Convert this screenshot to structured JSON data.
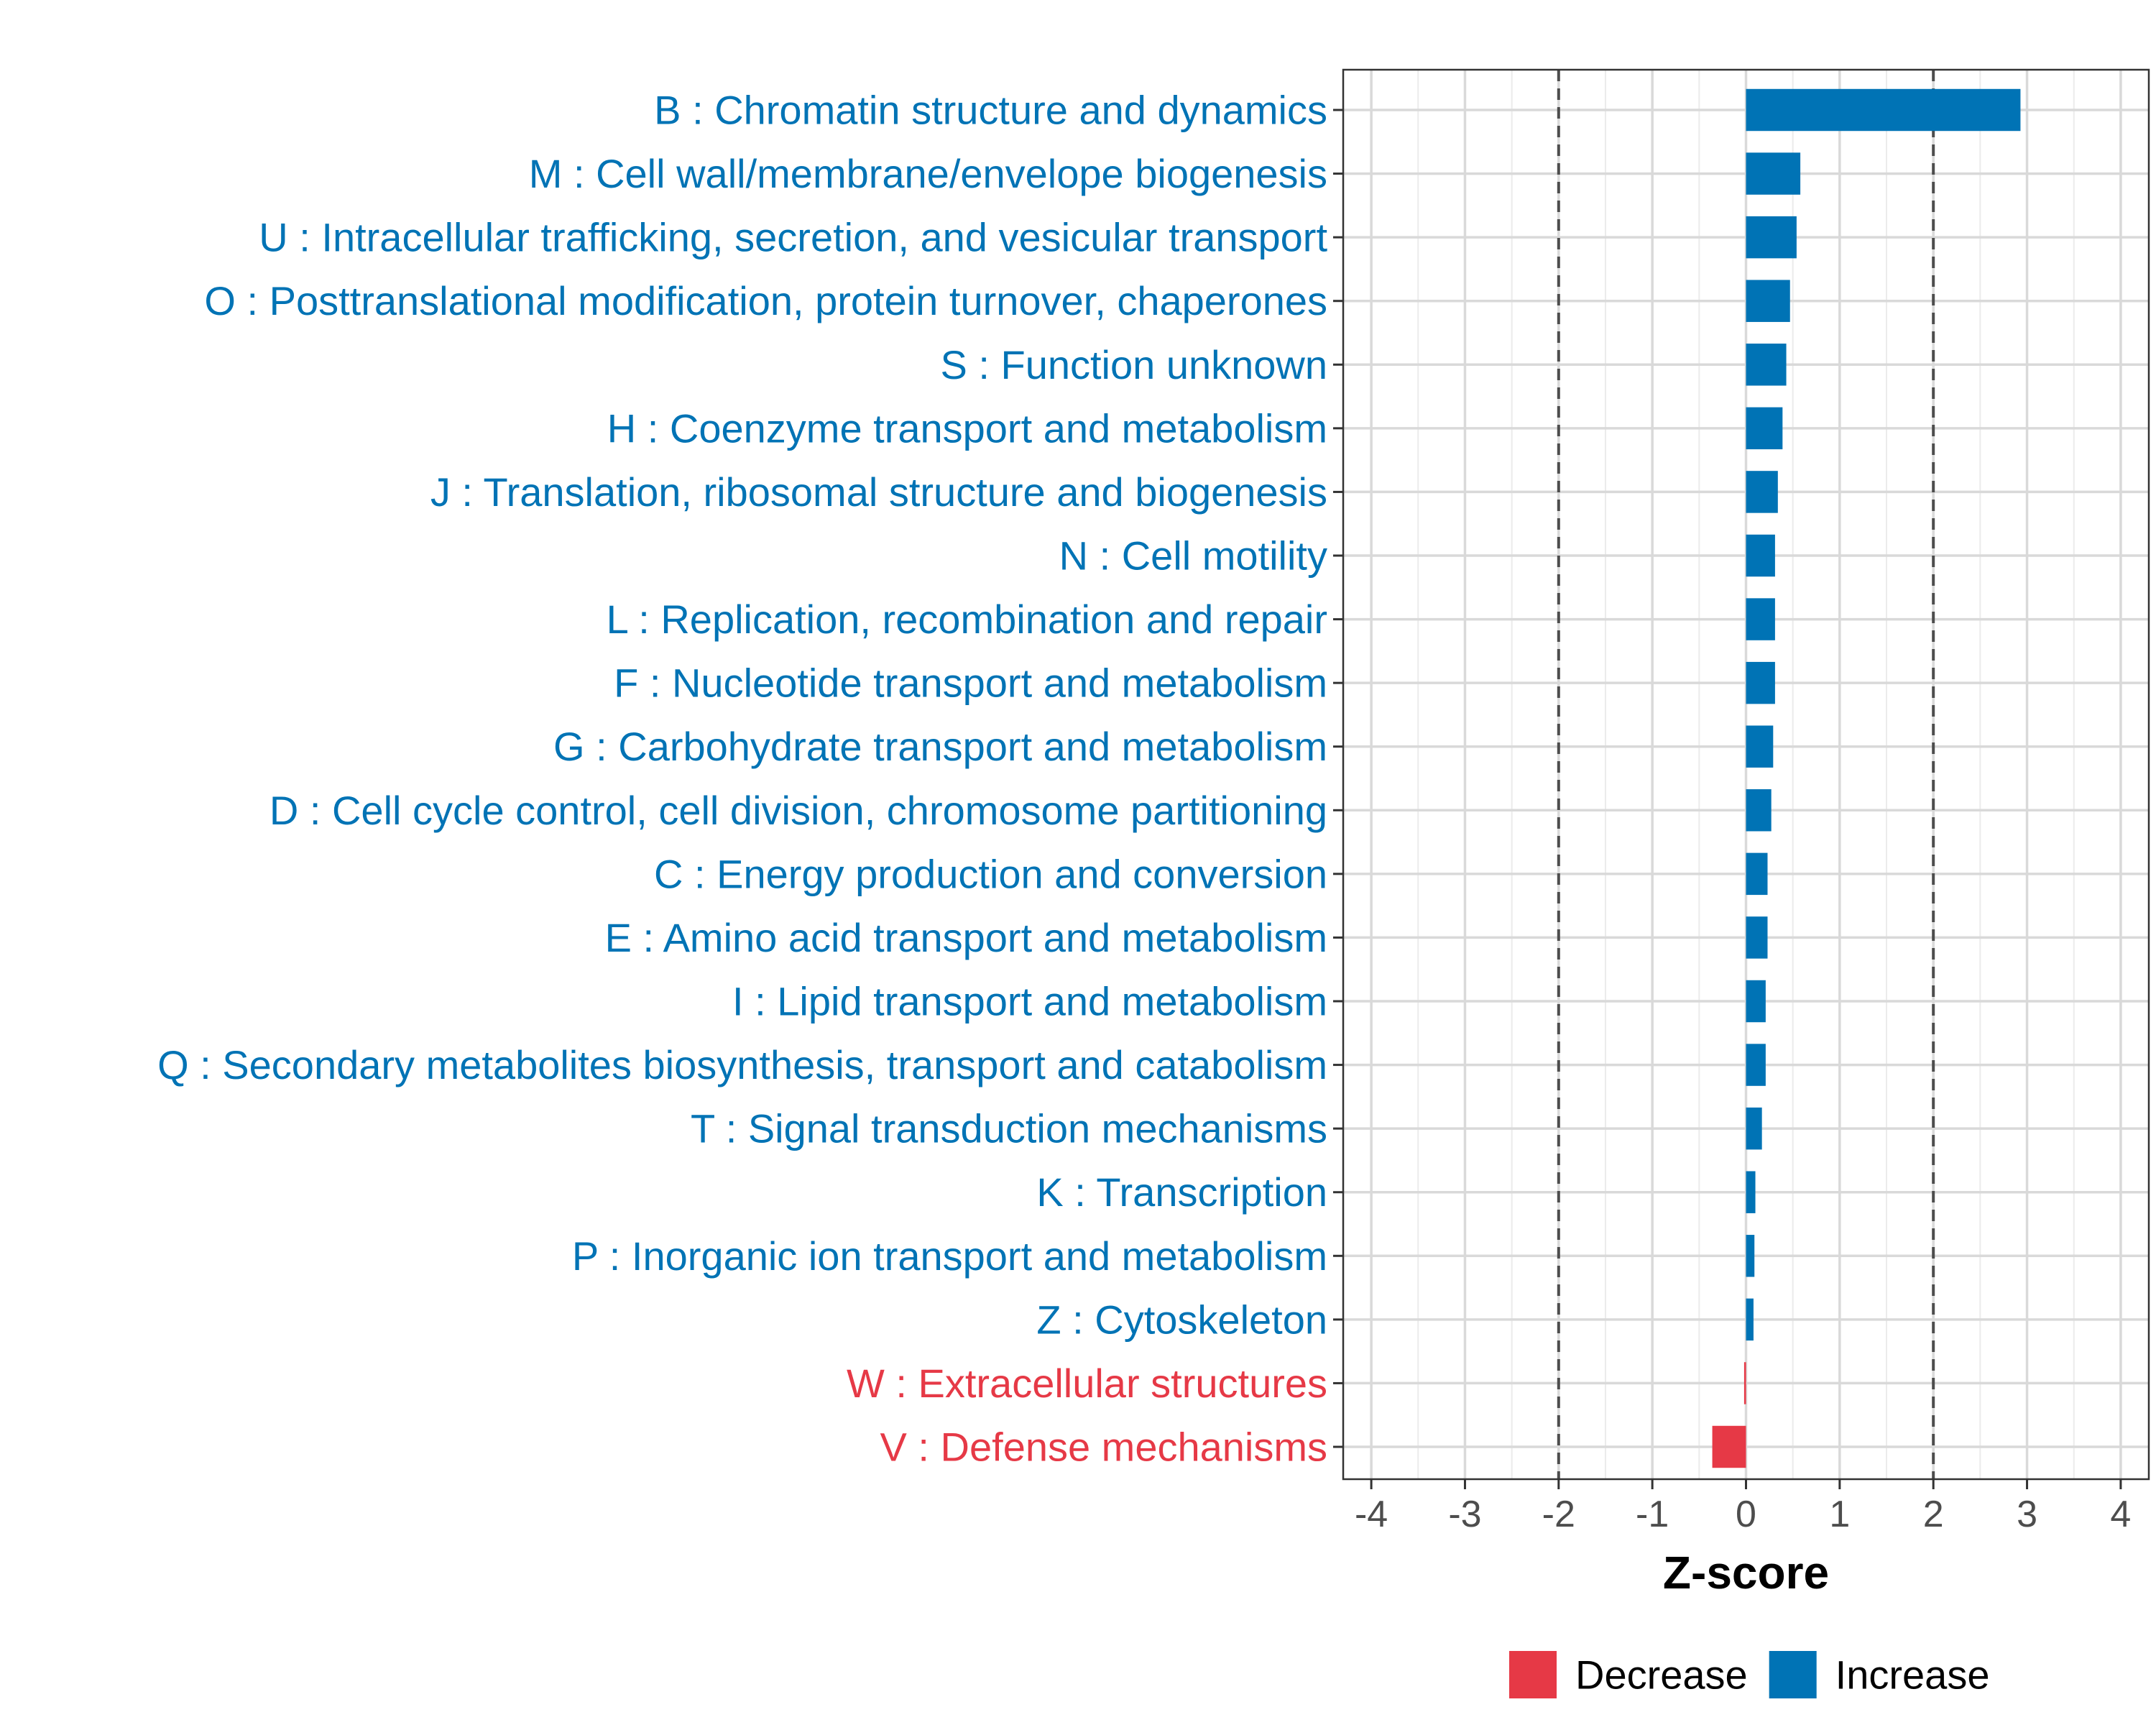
{
  "chart_data": {
    "type": "bar",
    "orientation": "horizontal",
    "xlabel": "Z-score",
    "xlim": [
      -4.3,
      4.3
    ],
    "xticks": [
      -4,
      -3,
      -2,
      -1,
      0,
      1,
      2,
      3,
      4
    ],
    "xtick_labels": [
      "-4",
      "-3",
      "-2",
      "-1",
      "0",
      "1",
      "2",
      "3",
      "4"
    ],
    "reference_lines": [
      -2,
      2
    ],
    "grid": true,
    "legend_position": "bottom",
    "colors": {
      "Decrease": "#E63946",
      "Increase": "#0073B5"
    },
    "legend": [
      {
        "label": "Decrease",
        "color": "#E63946"
      },
      {
        "label": "Increase",
        "color": "#0073B5"
      }
    ],
    "categories": [
      "B : Chromatin structure and dynamics",
      "M : Cell wall/membrane/envelope biogenesis",
      "U : Intracellular trafficking, secretion, and vesicular transport",
      "O : Posttranslational modification, protein turnover, chaperones",
      "S : Function unknown",
      "H : Coenzyme transport and metabolism",
      "J : Translation, ribosomal structure and biogenesis",
      "N : Cell motility",
      "L : Replication, recombination and repair",
      "F : Nucleotide transport and metabolism",
      "G : Carbohydrate transport and metabolism",
      "D : Cell cycle control, cell division, chromosome partitioning",
      "C : Energy production and conversion",
      "E : Amino acid transport and metabolism",
      "I : Lipid transport and metabolism",
      "Q : Secondary metabolites biosynthesis, transport and catabolism",
      "T : Signal transduction mechanisms",
      "K : Transcription",
      "P : Inorganic ion transport and metabolism",
      "Z : Cytoskeleton",
      "W : Extracellular structures",
      "V : Defense mechanisms"
    ],
    "values": [
      2.93,
      0.58,
      0.54,
      0.47,
      0.43,
      0.39,
      0.34,
      0.31,
      0.31,
      0.31,
      0.29,
      0.27,
      0.23,
      0.23,
      0.21,
      0.21,
      0.17,
      0.1,
      0.09,
      0.08,
      -0.02,
      -0.36
    ],
    "groups": [
      "Increase",
      "Increase",
      "Increase",
      "Increase",
      "Increase",
      "Increase",
      "Increase",
      "Increase",
      "Increase",
      "Increase",
      "Increase",
      "Increase",
      "Increase",
      "Increase",
      "Increase",
      "Increase",
      "Increase",
      "Increase",
      "Increase",
      "Increase",
      "Decrease",
      "Decrease"
    ]
  }
}
